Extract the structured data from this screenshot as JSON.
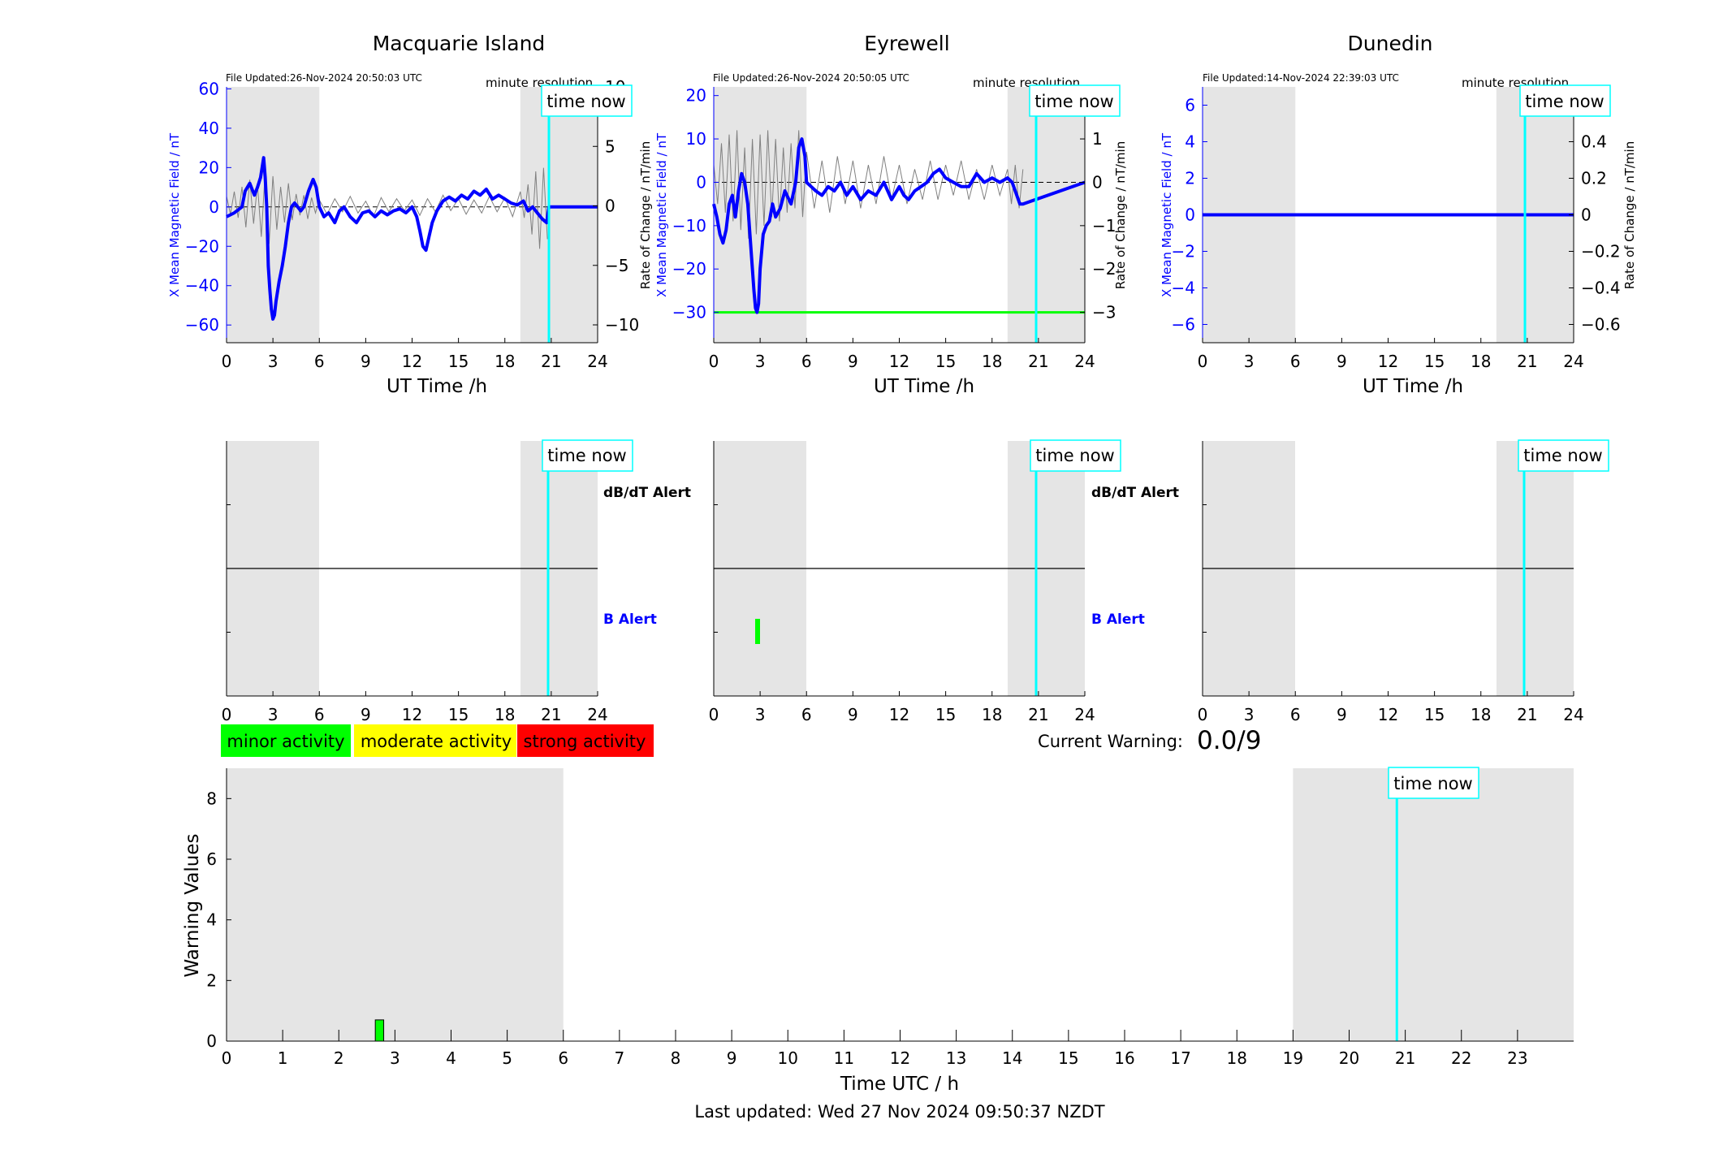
{
  "colors": {
    "daylight_shade": "#e5e5e5",
    "magnetic_field": "#0000ff",
    "rate_of_change": "#808080",
    "time_now": "#00ffff",
    "axis_blue": "#0000ff",
    "minor": "#00ff00",
    "moderate": "#ffff00",
    "strong": "#ff0000"
  },
  "stations": [
    {
      "name": "Macquarie Island",
      "file_updated": "File Updated:26-Nov-2024 20:50:03 UTC",
      "resolution": "minute resolution",
      "time_now_label": "time now",
      "y_left_label": "X Mean Magnetic Field / nT",
      "y_right_label": "Rate of Change / nT/min",
      "x_label": "UT Time /h"
    },
    {
      "name": "Eyrewell",
      "file_updated": "File Updated:26-Nov-2024 20:50:05 UTC",
      "resolution": "minute resolution",
      "time_now_label": "time now",
      "y_left_label": "X Mean Magnetic Field / nT",
      "y_right_label": "Rate of Change / nT/min",
      "x_label": "UT Time /h"
    },
    {
      "name": "Dunedin",
      "file_updated": "File Updated:14-Nov-2024 22:39:03 UTC",
      "resolution": "minute resolution",
      "time_now_label": "time now",
      "y_left_label": "X Mean Magnetic Field / nT",
      "y_right_label": "Rate of Change / nT/min",
      "x_label": ""
    }
  ],
  "alert_labels": {
    "dbdt": "dB/dT Alert",
    "b": "B Alert"
  },
  "legend": {
    "minor": "minor activity",
    "moderate": "moderate activity",
    "strong": "strong activity"
  },
  "current_warning": {
    "label": "Current Warning:",
    "value": "0.0/9"
  },
  "warning_panel": {
    "ylabel": "Warning Values",
    "xlabel": "Time UTC / h",
    "time_now_label": "time now"
  },
  "last_updated": "Last updated: Wed 27 Nov 2024 09:50:37 NZDT",
  "chart_data": [
    {
      "type": "line",
      "title": "Macquarie Island",
      "xlabel": "UT Time /h",
      "ylabel": "X Mean Magnetic Field / nT",
      "ylabel_right": "Rate of Change / nT/min",
      "xlim": [
        0,
        24
      ],
      "ylim": [
        -69,
        61
      ],
      "ylim_right": [
        -11.5,
        10
      ],
      "x_ticks": [
        0,
        3,
        6,
        9,
        12,
        15,
        18,
        21,
        24
      ],
      "y_ticks": [
        -60,
        -40,
        -20,
        0,
        20,
        40,
        60
      ],
      "y_ticks_right": [
        -10,
        -5,
        0,
        5,
        10
      ],
      "shaded_ranges": [
        [
          0,
          6
        ],
        [
          19,
          24
        ]
      ],
      "time_now": 20.85,
      "series": [
        {
          "x": [
            0,
            0.5,
            1,
            1.2,
            1.5,
            1.8,
            2,
            2.2,
            2.4,
            2.5,
            2.6,
            2.7,
            2.8,
            2.9,
            3.0,
            3.1,
            3.2,
            3.4,
            3.6,
            3.8,
            4.0,
            4.2,
            4.4,
            4.6,
            4.8,
            5.0,
            5.3,
            5.6,
            5.8,
            6.0,
            6.3,
            6.6,
            7.0,
            7.3,
            7.6,
            8.0,
            8.4,
            8.8,
            9.2,
            9.6,
            10.0,
            10.4,
            10.8,
            11.2,
            11.6,
            12.0,
            12.3,
            12.5,
            12.7,
            12.9,
            13.1,
            13.3,
            13.6,
            14.0,
            14.4,
            14.8,
            15.2,
            15.6,
            16.0,
            16.4,
            16.8,
            17.2,
            17.6,
            18.0,
            18.4,
            18.8,
            19.2,
            19.5,
            19.8,
            20.1,
            20.4,
            20.7,
            20.85,
            24
          ],
          "values": [
            -5,
            -3,
            0,
            8,
            12,
            6,
            10,
            15,
            25,
            15,
            0,
            -30,
            -42,
            -52,
            -57,
            -55,
            -48,
            -38,
            -30,
            -20,
            -8,
            0,
            2,
            0,
            -2,
            0,
            8,
            14,
            10,
            0,
            -5,
            -3,
            -8,
            -2,
            0,
            -5,
            -8,
            -3,
            -2,
            -5,
            -2,
            -4,
            -2,
            -1,
            -3,
            0,
            -5,
            -12,
            -20,
            -22,
            -15,
            -8,
            -2,
            3,
            5,
            3,
            6,
            4,
            8,
            6,
            9,
            4,
            6,
            4,
            2,
            1,
            3,
            -2,
            0,
            -3,
            -6,
            -8,
            0,
            0
          ]
        },
        {
          "x": [
            0,
            0.25,
            0.5,
            0.75,
            1,
            1.25,
            1.5,
            1.75,
            2,
            2.25,
            2.5,
            2.75,
            3,
            3.25,
            3.5,
            3.75,
            4,
            4.25,
            4.5,
            4.75,
            5,
            5.25,
            5.5,
            5.75,
            6,
            6.5,
            7,
            7.5,
            8,
            8.5,
            9,
            9.5,
            10,
            10.5,
            11,
            11.5,
            12,
            12.5,
            13,
            13.5,
            14,
            14.5,
            15,
            15.5,
            16,
            16.5,
            17,
            17.5,
            18,
            18.5,
            19,
            19.25,
            19.5,
            19.75,
            20,
            20.25,
            20.5,
            20.75
          ],
          "values": [
            0.8,
            -0.7,
            1.2,
            -1.0,
            1.6,
            -1.8,
            2.2,
            -1.5,
            1.8,
            -2.6,
            2.9,
            -3.2,
            2.5,
            -2.0,
            1.6,
            -1.4,
            1.9,
            -1.2,
            1.0,
            -0.8,
            0.9,
            -1.1,
            0.7,
            -0.6,
            0.5,
            -0.7,
            0.6,
            -0.5,
            0.8,
            -0.6,
            0.4,
            -0.9,
            0.7,
            -0.5,
            0.6,
            -0.4,
            0.5,
            -0.8,
            0.6,
            -0.5,
            0.9,
            -0.4,
            0.6,
            -0.7,
            0.5,
            -0.6,
            0.8,
            -0.5,
            0.7,
            -0.9,
            1.2,
            -1.0,
            1.8,
            -2.4,
            2.9,
            -3.6,
            3.2,
            -2.8
          ]
        }
      ]
    },
    {
      "type": "line",
      "title": "Eyrewell",
      "xlabel": "UT Time /h",
      "ylabel": "X Mean Magnetic Field / nT",
      "ylabel_right": "Rate of Change / nT/min",
      "xlim": [
        0,
        24
      ],
      "ylim": [
        -37,
        22
      ],
      "ylim_right": [
        -3.7,
        2.2
      ],
      "x_ticks": [
        0,
        3,
        6,
        9,
        12,
        15,
        18,
        21,
        24
      ],
      "y_ticks": [
        -30,
        -20,
        -10,
        0,
        10,
        20
      ],
      "y_ticks_right": [
        -3,
        -2,
        -1,
        0,
        1,
        2
      ],
      "shaded_ranges": [
        [
          0,
          6
        ],
        [
          19,
          24
        ]
      ],
      "time_now": 20.85,
      "threshold": -30,
      "series": [
        {
          "x": [
            0,
            0.2,
            0.4,
            0.6,
            0.8,
            1.0,
            1.2,
            1.4,
            1.6,
            1.8,
            2.0,
            2.2,
            2.4,
            2.6,
            2.7,
            2.8,
            2.9,
            3.0,
            3.2,
            3.4,
            3.6,
            3.8,
            4.0,
            4.3,
            4.6,
            5.0,
            5.3,
            5.5,
            5.7,
            5.9,
            6.0,
            6.3,
            6.6,
            7.0,
            7.4,
            7.8,
            8.2,
            8.6,
            9.0,
            9.5,
            10.0,
            10.5,
            11.0,
            11.5,
            12.0,
            12.3,
            12.6,
            13.0,
            13.4,
            13.8,
            14.2,
            14.6,
            15.0,
            15.5,
            16.0,
            16.5,
            17.0,
            17.5,
            18.0,
            18.5,
            19.0,
            19.3,
            19.6,
            19.8,
            20.0,
            24
          ],
          "values": [
            -5,
            -8,
            -12,
            -14,
            -11,
            -5,
            -3,
            -8,
            -2,
            2,
            0,
            -5,
            -15,
            -25,
            -29,
            -30,
            -28,
            -20,
            -12,
            -10,
            -9,
            -5,
            -8,
            -6,
            -2,
            -5,
            0,
            8,
            10,
            6,
            0,
            -1,
            -2,
            -3,
            -1,
            -2,
            0,
            -3,
            -1,
            -4,
            -2,
            -3,
            0,
            -4,
            -1,
            -3,
            -4,
            -2,
            -1,
            0,
            2,
            3,
            1,
            0,
            -1,
            -1,
            2,
            0,
            1,
            0,
            1,
            0,
            -3,
            -5,
            -5,
            0
          ]
        },
        {
          "x": [
            0,
            0.25,
            0.5,
            0.75,
            1,
            1.25,
            1.5,
            1.75,
            2,
            2.25,
            2.5,
            2.75,
            3,
            3.25,
            3.5,
            3.75,
            4,
            4.25,
            4.5,
            4.75,
            5,
            5.25,
            5.5,
            5.75,
            6,
            6.5,
            7,
            7.5,
            8,
            8.5,
            9,
            9.5,
            10,
            10.5,
            11,
            11.5,
            12,
            12.5,
            13,
            13.5,
            14,
            14.5,
            15,
            15.5,
            16,
            16.5,
            17,
            17.5,
            18,
            18.5,
            19,
            19.25,
            19.5,
            19.75,
            20
          ],
          "values": [
            0.4,
            -0.5,
            0.9,
            -0.7,
            1.1,
            -0.9,
            1.2,
            -1.1,
            0.8,
            -1.3,
            1.0,
            -1.2,
            1.1,
            -1.0,
            1.2,
            -0.8,
            1.0,
            -0.9,
            0.8,
            -0.7,
            0.9,
            -0.6,
            1.2,
            -0.8,
            0.7,
            -0.6,
            0.5,
            -0.7,
            0.6,
            -0.5,
            0.5,
            -0.6,
            0.4,
            -0.5,
            0.6,
            -0.4,
            0.4,
            -0.5,
            0.3,
            -0.4,
            0.5,
            -0.4,
            0.4,
            -0.3,
            0.5,
            -0.4,
            0.3,
            -0.4,
            0.4,
            -0.3,
            0.3,
            -0.5,
            0.4,
            -0.6,
            0.3
          ]
        }
      ]
    },
    {
      "type": "line",
      "title": "Dunedin",
      "xlabel": "UT Time /h",
      "ylabel": "X Mean Magnetic Field / nT",
      "ylabel_right": "Rate of Change / nT/min",
      "xlim": [
        0,
        24
      ],
      "ylim": [
        -7,
        7
      ],
      "ylim_right": [
        -0.7,
        0.7
      ],
      "x_ticks": [
        0,
        3,
        6,
        9,
        12,
        15,
        18,
        21,
        24
      ],
      "y_ticks": [
        -6,
        -4,
        -2,
        0,
        2,
        4,
        6
      ],
      "y_ticks_right": [
        -0.6,
        -0.4,
        -0.2,
        0,
        0.2,
        0.4,
        0.6
      ],
      "shaded_ranges": [
        [
          0,
          6
        ],
        [
          19,
          24
        ]
      ],
      "time_now": 20.85,
      "series": [
        {
          "x": [
            0,
            24
          ],
          "values": [
            0,
            0
          ]
        }
      ]
    },
    {
      "type": "bar",
      "title": "",
      "xlabel": "Time UTC / h",
      "ylabel": "Warning Values",
      "xlim": [
        0,
        24
      ],
      "ylim": [
        0,
        9
      ],
      "x_ticks": [
        0,
        1,
        2,
        3,
        4,
        5,
        6,
        7,
        8,
        9,
        10,
        11,
        12,
        13,
        14,
        15,
        16,
        17,
        18,
        19,
        20,
        21,
        22,
        23
      ],
      "y_ticks": [
        0,
        2,
        4,
        6,
        8
      ],
      "shaded_ranges": [
        [
          0,
          6
        ],
        [
          19,
          24
        ]
      ],
      "time_now": 20.85,
      "bars": [
        {
          "start": 2.65,
          "end": 2.8,
          "value": 0.7
        }
      ]
    }
  ]
}
